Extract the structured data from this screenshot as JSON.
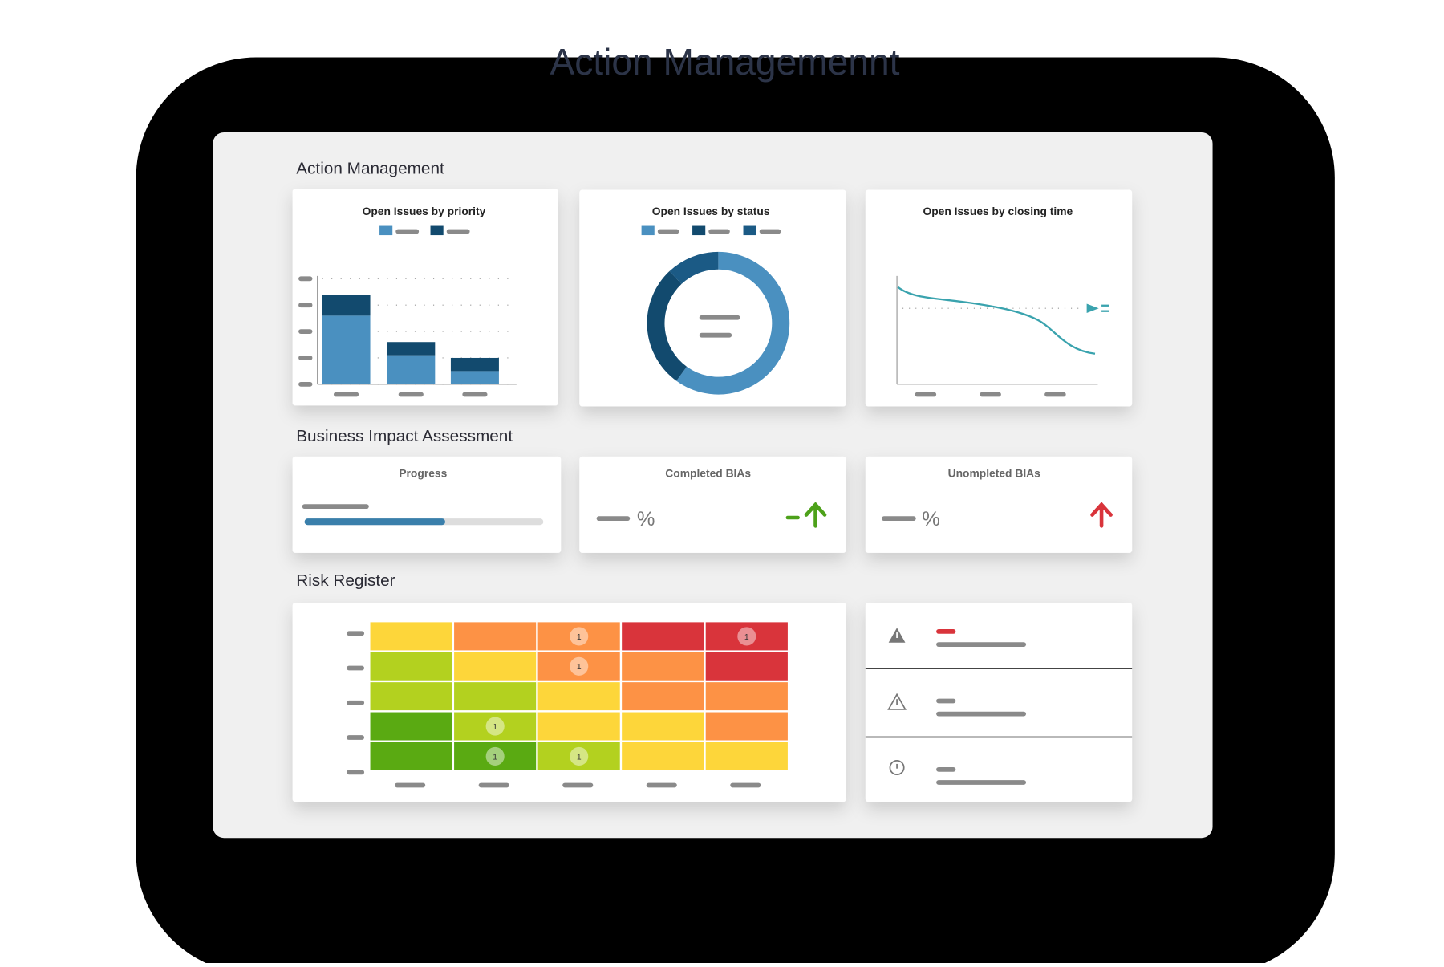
{
  "header": {
    "title": "Action Managemennt"
  },
  "action_management": {
    "title": "Action Management",
    "priority_chart": {
      "type": "bar",
      "title": "Open Issues by priority",
      "ylim": [
        0,
        4
      ],
      "series": [
        {
          "color": "#4a90c0",
          "values": [
            2.6,
            1.1,
            0.5
          ]
        },
        {
          "color": "#124a6e",
          "values": [
            0.8,
            0.5,
            0.5
          ]
        }
      ]
    },
    "status_chart": {
      "type": "pie",
      "title": "Open Issues by status",
      "values": [
        60,
        28,
        12
      ],
      "colors": [
        "#4a90c0",
        "#124a6e",
        "#1b5a85"
      ]
    },
    "closing_chart": {
      "title": "Open Issues by closing time"
    }
  },
  "bia": {
    "title": "Business Impact Assessment",
    "cards": [
      {
        "title": "Progress"
      },
      {
        "title": "Completed BIAs",
        "unit": "%"
      },
      {
        "title": "Unompleted BIAs",
        "unit": "%"
      }
    ]
  },
  "risk": {
    "title": "Risk Register",
    "colors": [
      [
        "#fdd63a",
        "#fd9245",
        "#fd9245",
        "#d9343b",
        "#d9343b"
      ],
      [
        "#b3d11f",
        "#fdd63a",
        "#fd9245",
        "#fd9245",
        "#d9343b"
      ],
      [
        "#b3d11f",
        "#b3d11f",
        "#fdd63a",
        "#fd9245",
        "#fd9245"
      ],
      [
        "#5aaa12",
        "#b3d11f",
        "#fdd63a",
        "#fdd63a",
        "#fd9245"
      ],
      [
        "#5aaa12",
        "#5aaa12",
        "#b3d11f",
        "#fdd63a",
        "#fdd63a"
      ]
    ],
    "counts": [
      [
        null,
        null,
        1,
        null,
        1
      ],
      [
        null,
        null,
        1,
        null,
        null
      ],
      [
        null,
        null,
        null,
        null,
        null
      ],
      [
        null,
        1,
        null,
        null,
        null
      ],
      [
        null,
        1,
        1,
        null,
        null
      ]
    ]
  }
}
